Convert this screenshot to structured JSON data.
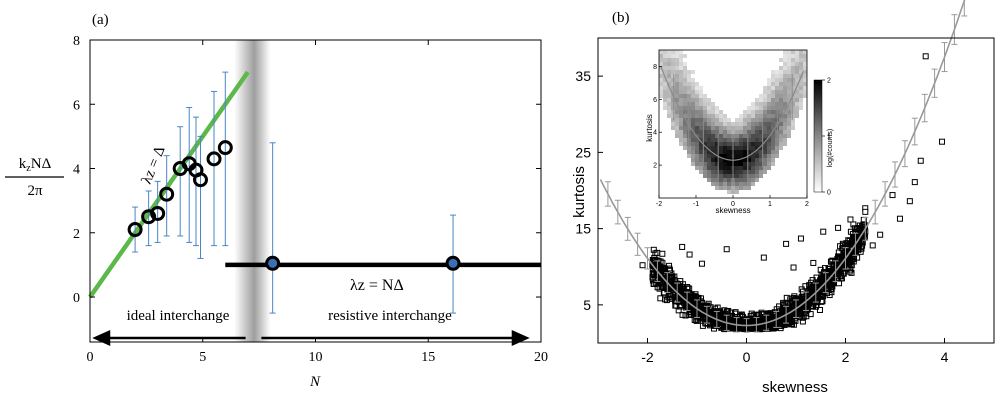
{
  "chart_data": [
    {
      "panel_label": "(a)",
      "type": "scatter",
      "xlabel": "N",
      "ylabel": "kzNΔ / 2π",
      "xlim": [
        0,
        20
      ],
      "ylim": [
        -1.4,
        8
      ],
      "xticks": [
        0,
        5,
        10,
        15,
        20
      ],
      "yticks": [
        0,
        2,
        4,
        6,
        8
      ],
      "points": [
        {
          "x": 2.0,
          "y": 2.1,
          "err_low": 1.4,
          "err_high": 2.8
        },
        {
          "x": 2.6,
          "y": 2.5,
          "err_low": 1.6,
          "err_high": 3.3
        },
        {
          "x": 3.0,
          "y": 2.6,
          "err_low": 1.7,
          "err_high": 3.6
        },
        {
          "x": 3.4,
          "y": 3.2,
          "err_low": 1.9,
          "err_high": 4.4
        },
        {
          "x": 4.0,
          "y": 4.0,
          "err_low": 1.9,
          "err_high": 5.3
        },
        {
          "x": 4.4,
          "y": 4.15,
          "err_low": 1.7,
          "err_high": 5.9
        },
        {
          "x": 4.7,
          "y": 3.95,
          "err_low": 1.6,
          "err_high": 5.6
        },
        {
          "x": 4.9,
          "y": 3.65,
          "err_low": 1.2,
          "err_high": 5.0
        },
        {
          "x": 5.5,
          "y": 4.3,
          "err_low": 1.6,
          "err_high": 6.4
        },
        {
          "x": 6.0,
          "y": 4.65,
          "err_low": 1.6,
          "err_high": 7.0
        },
        {
          "x": 8.1,
          "y": 1.05,
          "err_low": -0.5,
          "err_high": 4.8
        },
        {
          "x": 16.1,
          "y": 1.05,
          "err_low": -0.5,
          "err_high": 2.55
        }
      ],
      "green_line": {
        "x": [
          0,
          7.0
        ],
        "y": [
          0,
          7.0
        ],
        "color": "#5db84a"
      },
      "black_line": {
        "x": [
          6.0,
          20.0
        ],
        "y": [
          1.0,
          1.0
        ],
        "color": "#000000"
      },
      "shaded_band": {
        "x": [
          6.4,
          8.0
        ]
      },
      "error_color": "#4a86c6",
      "annotations": {
        "green_label": "λz = Δ",
        "black_label": "λz = NΔ",
        "left_arrow_label": "ideal interchange",
        "right_arrow_label": "resistive interchange"
      },
      "arrows_y": -2.55,
      "arrows": [
        {
          "from": 6.9,
          "to": 0.1
        },
        {
          "from": 7.6,
          "to": 19.5
        }
      ]
    },
    {
      "panel_label": "(b)",
      "type": "scatter",
      "xlabel": "skewness",
      "ylabel": "kurtosis",
      "xlim": [
        -3,
        5
      ],
      "ylim": [
        0,
        40
      ],
      "xticks": [
        -2,
        0,
        2,
        4
      ],
      "yticks": [
        5,
        15,
        25,
        35
      ],
      "fit_curve": {
        "formula": "kurtosis ≈ 2.3 + 2.2*skewness^2",
        "color": "#999999"
      },
      "outliers": [
        {
          "x": 3.62,
          "y": 37.6
        },
        {
          "x": 3.95,
          "y": 26.4
        },
        {
          "x": 3.52,
          "y": 23.9
        },
        {
          "x": 3.3,
          "y": 18.6
        },
        {
          "x": 2.95,
          "y": 19.4
        },
        {
          "x": 2.4,
          "y": 17.2
        },
        {
          "x": 2.1,
          "y": 16.2
        },
        {
          "x": 1.55,
          "y": 14.6
        },
        {
          "x": 1.1,
          "y": 13.7
        },
        {
          "x": 0.8,
          "y": 13.0
        },
        {
          "x": -1.15,
          "y": 11.6
        },
        {
          "x": -1.3,
          "y": 12.6
        },
        {
          "x": -0.4,
          "y": 12.3
        },
        {
          "x": 1.85,
          "y": 15.1
        },
        {
          "x": -1.7,
          "y": 11.7
        },
        {
          "x": 0.35,
          "y": 11.2
        },
        {
          "x": 1.35,
          "y": 10.5
        },
        {
          "x": 2.7,
          "y": 14.2
        },
        {
          "x": 3.1,
          "y": 16.3
        },
        {
          "x": -0.9,
          "y": 10.4
        },
        {
          "x": 0.95,
          "y": 9.9
        },
        {
          "x": 2.55,
          "y": 12.8
        },
        {
          "x": -2.1,
          "y": 10.2
        },
        {
          "x": 3.4,
          "y": 21.1
        }
      ],
      "inset": {
        "type": "heatmap",
        "xlabel": "skewness",
        "ylabel": "kurtosis",
        "xlim": [
          -2,
          2
        ],
        "ylim": [
          0,
          9
        ],
        "xticks": [
          -2,
          -1,
          0,
          1,
          2
        ],
        "yticks": [
          2,
          4,
          6,
          8
        ],
        "colorbar": {
          "label": "log(#counts)",
          "ticks": [
            0,
            1,
            2
          ]
        }
      }
    }
  ]
}
